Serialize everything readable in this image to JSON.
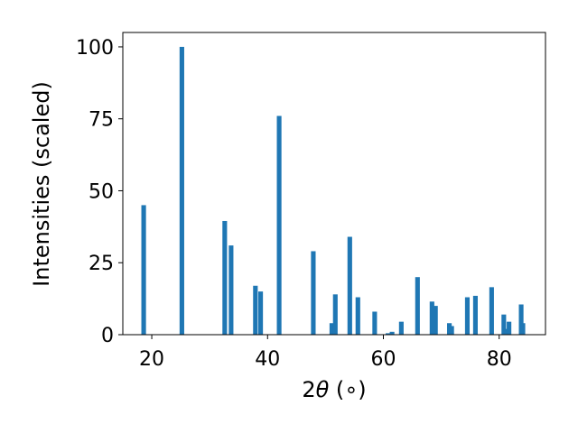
{
  "chart_data": {
    "type": "bar",
    "xlabel_prefix": "2",
    "xlabel_theta": "θ",
    "xlabel_unit": " (∘)",
    "ylabel": "Intensities (scaled)",
    "xlim": [
      15,
      88
    ],
    "ylim": [
      0,
      105
    ],
    "xticks": [
      20,
      40,
      60,
      80
    ],
    "yticks": [
      0,
      25,
      50,
      75,
      100
    ],
    "bar_width": 0.8,
    "bar_color": "#1f77b4",
    "grid": false,
    "x": [
      18.6,
      25.2,
      32.6,
      33.7,
      37.9,
      38.8,
      42.0,
      47.9,
      51.1,
      51.7,
      54.2,
      55.6,
      58.5,
      60.8,
      61.5,
      63.1,
      65.9,
      68.4,
      69.0,
      71.4,
      71.8,
      74.5,
      75.9,
      78.7,
      80.8,
      81.3,
      81.7,
      83.8,
      84.1
    ],
    "values": [
      45,
      100,
      39.5,
      31,
      17,
      15,
      76,
      29,
      4,
      14,
      34,
      13,
      8,
      0.5,
      1,
      4.5,
      20,
      11.5,
      10,
      4,
      3,
      13,
      13.5,
      16.5,
      7,
      2,
      4.5,
      10.5,
      4
    ]
  }
}
